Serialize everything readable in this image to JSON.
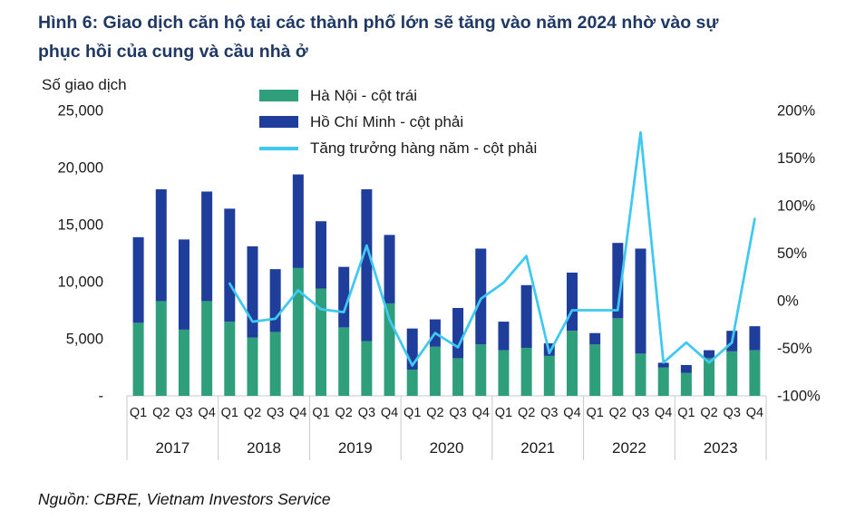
{
  "figure": {
    "title_line1": "Hình 6: Giao dịch căn hộ tại các thành phố lớn sẽ tăng vào năm 2024 nhờ vào sự",
    "title_line2": "phục hồi của cung và cầu nhà ở"
  },
  "left_axis_title": "Số giao dịch",
  "source": "Nguồn: CBRE, Vietnam Investors Service",
  "legend": [
    {
      "label": "Hà Nội - cột trái",
      "color": "#2F9E7B",
      "type": "bar"
    },
    {
      "label": "Hồ Chí Minh - cột phải",
      "color": "#1F3D9B",
      "type": "bar"
    },
    {
      "label": "Tăng trưởng hàng năm - cột phải",
      "color": "#3FC8F0",
      "type": "line"
    }
  ],
  "chart_data": {
    "type": "bar",
    "subtype": "stacked-bars-with-yoy-line",
    "title": "Hình 6: Giao dịch căn hộ tại các thành phố lớn sẽ tăng vào năm 2024 nhờ vào sự phục hồi của cung và cầu nhà ở",
    "ylabel_left": "Số giao dịch",
    "legend_position": "top",
    "grid": false,
    "years": [
      "2017",
      "2018",
      "2019",
      "2020",
      "2021",
      "2022",
      "2023"
    ],
    "quarter_labels": [
      "Q1",
      "Q2",
      "Q3",
      "Q4"
    ],
    "left_axis": {
      "min": 0,
      "max": 25000,
      "ticks": [
        {
          "v": 25000,
          "label": "25,000"
        },
        {
          "v": 20000,
          "label": "20,000"
        },
        {
          "v": 15000,
          "label": "15,000"
        },
        {
          "v": 10000,
          "label": "10,000"
        },
        {
          "v": 5000,
          "label": "5,000"
        },
        {
          "v": 0,
          "label": "-"
        }
      ]
    },
    "right_axis": {
      "min": -100,
      "max": 200,
      "ticks": [
        {
          "v": 200,
          "label": "200%"
        },
        {
          "v": 150,
          "label": "150%"
        },
        {
          "v": 100,
          "label": "100%"
        },
        {
          "v": 50,
          "label": "50%"
        },
        {
          "v": 0,
          "label": "0%"
        },
        {
          "v": -50,
          "label": "-50%"
        },
        {
          "v": -100,
          "label": "-100%"
        }
      ]
    },
    "series": [
      {
        "name": "Hà Nội - cột trái",
        "type": "bar",
        "axis": "left",
        "color": "#2F9E7B",
        "values": [
          6400,
          8300,
          5800,
          8300,
          6500,
          5100,
          5600,
          11200,
          9400,
          6000,
          4800,
          8100,
          2300,
          4300,
          3300,
          4500,
          4000,
          4200,
          3500,
          5700,
          4500,
          6800,
          3700,
          2500,
          2000,
          3300,
          3900,
          4000
        ]
      },
      {
        "name": "Hồ Chí Minh - cột phải",
        "type": "bar",
        "axis": "left",
        "stacked_on": "Hà Nội - cột trái",
        "color": "#1F3D9B",
        "values": [
          7500,
          9800,
          7900,
          9600,
          9900,
          8000,
          5500,
          8200,
          5900,
          5300,
          13300,
          6000,
          3600,
          2400,
          4400,
          8400,
          2500,
          5500,
          1100,
          5100,
          1000,
          6600,
          9200,
          400,
          700,
          700,
          1800,
          2100
        ]
      },
      {
        "name": "Tăng trưởng hàng năm - cột phải",
        "type": "line",
        "axis": "right",
        "unit": "%",
        "color": "#3FC8F0",
        "values": [
          null,
          null,
          null,
          null,
          18,
          -22,
          -19,
          11,
          -9,
          -12,
          58,
          -20,
          -68,
          -34,
          -49,
          2,
          19,
          47,
          -55,
          -10,
          -10,
          -10,
          177,
          -65,
          -44,
          -65,
          -44,
          86
        ]
      }
    ]
  }
}
